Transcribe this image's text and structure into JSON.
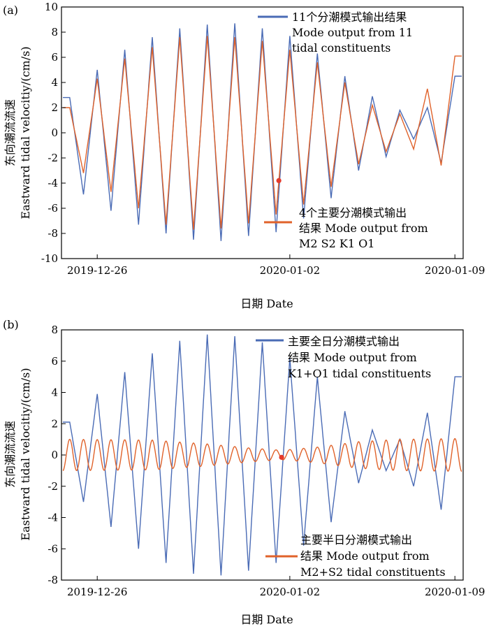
{
  "chart_data": [
    {
      "panel_label": "(a)",
      "type": "line",
      "xlabel": "日期 Date",
      "ylabel_lines": [
        "东向潮流流速",
        "Eastward tidal velocitiy/(cm/s)"
      ],
      "ylim": [
        -10,
        10
      ],
      "yticks": [
        -10,
        -8,
        -6,
        -4,
        -2,
        0,
        2,
        4,
        6,
        8,
        10
      ],
      "x_range_days": [
        -0.3,
        14.3
      ],
      "x_ticks": [
        {
          "day": 1,
          "label": "2019-12-26"
        },
        {
          "day": 8,
          "label": "2020-01-02"
        },
        {
          "day": 14,
          "label": "2020-01-09"
        }
      ],
      "series": [
        {
          "name": "11 tidal constituents",
          "legend_lines": [
            "11个分潮模式输出结果",
            "Mode output from 11",
            "tidal constituents"
          ],
          "color": "#4a6bb5",
          "points": [
            [
              0,
              2.8
            ],
            [
              0.5,
              -4.9
            ],
            [
              1,
              5
            ],
            [
              1.5,
              -6.2
            ],
            [
              2,
              6.6
            ],
            [
              2.5,
              -7.3
            ],
            [
              3,
              7.6
            ],
            [
              3.5,
              -8.0
            ],
            [
              4,
              8.3
            ],
            [
              4.5,
              -8.5
            ],
            [
              5,
              8.6
            ],
            [
              5.5,
              -8.6
            ],
            [
              6,
              8.7
            ],
            [
              6.5,
              -8.2
            ],
            [
              7,
              8.3
            ],
            [
              7.5,
              -7.9
            ],
            [
              8,
              7.7
            ],
            [
              8.5,
              -6.8
            ],
            [
              9,
              6.3
            ],
            [
              9.5,
              -5.2
            ],
            [
              10,
              4.5
            ],
            [
              10.5,
              -3.0
            ],
            [
              11,
              2.9
            ],
            [
              11.5,
              -1.9
            ],
            [
              12,
              1.8
            ],
            [
              12.5,
              -0.5
            ],
            [
              13,
              2.0
            ],
            [
              13.5,
              -2.4
            ],
            [
              14,
              4.5
            ]
          ]
        },
        {
          "name": "M2 S2 K1 O1",
          "legend_lines": [
            "4个主要分潮模式输出",
            "结果 Mode output from",
            "M2 S2 K1 O1"
          ],
          "color": "#e0622a",
          "points": [
            [
              0,
              2.0
            ],
            [
              0.5,
              -3.2
            ],
            [
              1,
              4.3
            ],
            [
              1.5,
              -4.7
            ],
            [
              2,
              5.9
            ],
            [
              2.5,
              -6.0
            ],
            [
              3,
              6.8
            ],
            [
              3.5,
              -7.3
            ],
            [
              4,
              7.6
            ],
            [
              4.5,
              -7.7
            ],
            [
              5,
              7.7
            ],
            [
              5.5,
              -7.6
            ],
            [
              6,
              7.6
            ],
            [
              6.5,
              -7.2
            ],
            [
              7,
              7.3
            ],
            [
              7.5,
              -6.5
            ],
            [
              8,
              6.6
            ],
            [
              8.5,
              -5.7
            ],
            [
              9,
              5.6
            ],
            [
              9.5,
              -4.3
            ],
            [
              10,
              4.0
            ],
            [
              10.5,
              -2.5
            ],
            [
              11,
              2.2
            ],
            [
              11.5,
              -1.5
            ],
            [
              12,
              1.5
            ],
            [
              12.5,
              -1.3
            ],
            [
              13,
              3.5
            ],
            [
              13.5,
              -2.6
            ],
            [
              14,
              6.1
            ]
          ]
        }
      ],
      "marker": {
        "day": 7.6,
        "value": -3.8,
        "color": "#e53a2c"
      }
    },
    {
      "panel_label": "(b)",
      "type": "line",
      "xlabel": "日期 Date",
      "ylabel_lines": [
        "东向潮流流速",
        "Eastward tidal velocitiy/(cm/s)"
      ],
      "ylim": [
        -8,
        8
      ],
      "yticks": [
        -8,
        -6,
        -4,
        -2,
        0,
        2,
        4,
        6,
        8
      ],
      "x_range_days": [
        -0.3,
        14.3
      ],
      "x_ticks": [
        {
          "day": 1,
          "label": "2019-12-26"
        },
        {
          "day": 8,
          "label": "2020-01-02"
        },
        {
          "day": 14,
          "label": "2020-01-09"
        }
      ],
      "series": [
        {
          "name": "K1+O1 tidal constituents",
          "legend_lines": [
            "主要全日分潮模式输出",
            "结果 Mode output from",
            "K1+O1 tidal constituents"
          ],
          "color": "#4a6bb5",
          "points": [
            [
              0,
              2.1
            ],
            [
              0.5,
              -3.0
            ],
            [
              1,
              3.9
            ],
            [
              1.5,
              -4.6
            ],
            [
              2,
              5.3
            ],
            [
              2.5,
              -6.0
            ],
            [
              3,
              6.5
            ],
            [
              3.5,
              -6.9
            ],
            [
              4,
              7.3
            ],
            [
              4.5,
              -7.6
            ],
            [
              5,
              7.7
            ],
            [
              5.5,
              -7.7
            ],
            [
              6,
              7.6
            ],
            [
              6.5,
              -7.4
            ],
            [
              7,
              7.2
            ],
            [
              7.5,
              -6.9
            ],
            [
              8,
              6.2
            ],
            [
              8.5,
              -5.8
            ],
            [
              9,
              5.0
            ],
            [
              9.5,
              -4.3
            ],
            [
              10,
              2.8
            ],
            [
              10.5,
              -1.8
            ],
            [
              11,
              1.6
            ],
            [
              11.5,
              -1.0
            ],
            [
              12,
              1.0
            ],
            [
              12.5,
              -2.0
            ],
            [
              13,
              2.7
            ],
            [
              13.5,
              -3.5
            ],
            [
              14,
              5.0
            ]
          ]
        },
        {
          "name": "M2+S2 tidal constituents",
          "legend_lines": [
            "主要半日分潮模式输出",
            "结果 Mode output from",
            "M2+S2 tidal constituents"
          ],
          "color": "#e0622a",
          "amplitude": [
            [
              0,
              1.0
            ],
            [
              3,
              0.95
            ],
            [
              5,
              0.7
            ],
            [
              6.5,
              0.45
            ],
            [
              7.7,
              0.3
            ],
            [
              9,
              0.5
            ],
            [
              10.5,
              0.85
            ],
            [
              12,
              1.0
            ],
            [
              14.3,
              1.05
            ]
          ]
        }
      ],
      "marker": {
        "day": 7.7,
        "value": -0.15,
        "color": "#e53a2c"
      }
    }
  ]
}
